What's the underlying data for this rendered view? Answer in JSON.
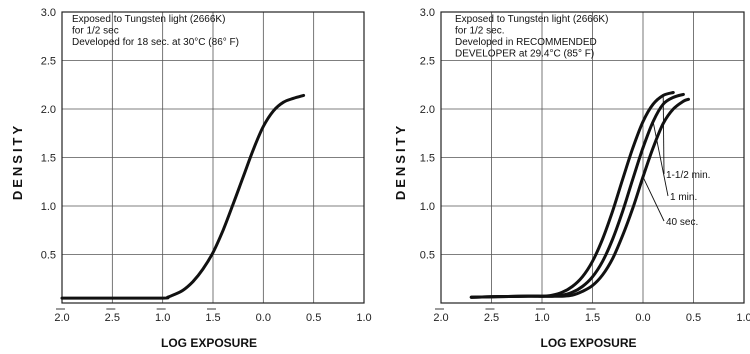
{
  "chart_data": [
    {
      "type": "line",
      "ylabel": "DENSITY",
      "xlabel": "LOG EXPOSURE",
      "x_ticks": [
        "2.0",
        "2.5",
        "1.0",
        "1.5",
        "0.0",
        "0.5",
        "1.0"
      ],
      "x_ticks_bar": [
        true,
        true,
        true,
        true,
        false,
        false,
        false
      ],
      "y_ticks": [
        "0.5",
        "1.0",
        "1.5",
        "2.0",
        "2.5",
        "3.0"
      ],
      "xlim": [
        -2.0,
        1.0
      ],
      "ylim": [
        0.0,
        3.0
      ],
      "grid": true,
      "annotation": [
        "Exposed to Tungsten light (2666K)",
        "for 1/2 sec",
        "Developed for 18 sec. at 30°C (86° F)"
      ],
      "series": [
        {
          "x": [
            -2.0,
            -1.5,
            -1.0,
            -0.95,
            -0.9,
            -0.8,
            -0.7,
            -0.6,
            -0.5,
            -0.4,
            -0.3,
            -0.2,
            -0.1,
            0.0,
            0.1,
            0.2,
            0.3,
            0.4
          ],
          "y": [
            0.05,
            0.05,
            0.05,
            0.06,
            0.08,
            0.13,
            0.22,
            0.35,
            0.52,
            0.75,
            1.02,
            1.3,
            1.58,
            1.82,
            1.98,
            2.07,
            2.11,
            2.14
          ]
        }
      ]
    },
    {
      "type": "line",
      "ylabel": "DENSITY",
      "xlabel": "LOG EXPOSURE",
      "x_ticks": [
        "2.0",
        "2.5",
        "1.0",
        "1.5",
        "0.0",
        "0.5",
        "1.0"
      ],
      "x_ticks_bar": [
        true,
        true,
        true,
        true,
        false,
        false,
        false
      ],
      "y_ticks": [
        "0.5",
        "1.0",
        "1.5",
        "2.0",
        "2.5",
        "3.0"
      ],
      "xlim": [
        -2.0,
        1.0
      ],
      "ylim": [
        0.0,
        3.0
      ],
      "grid": true,
      "annotation": [
        "Exposed to Tungsten light (2666K)",
        "for 1/2 sec.",
        "Developed in RECOMMENDED",
        "DEVELOPER at 29.4°C (85° F)"
      ],
      "series": [
        {
          "name": "1-1/2 min.",
          "x": [
            -1.7,
            -1.2,
            -1.0,
            -0.9,
            -0.8,
            -0.7,
            -0.6,
            -0.5,
            -0.4,
            -0.3,
            -0.2,
            -0.1,
            0.0,
            0.1,
            0.2,
            0.3
          ],
          "y": [
            0.06,
            0.07,
            0.07,
            0.08,
            0.11,
            0.17,
            0.27,
            0.43,
            0.66,
            0.95,
            1.28,
            1.6,
            1.87,
            2.05,
            2.14,
            2.17
          ]
        },
        {
          "name": "1 min.",
          "x": [
            -1.7,
            -1.2,
            -1.0,
            -0.9,
            -0.8,
            -0.7,
            -0.6,
            -0.5,
            -0.4,
            -0.3,
            -0.2,
            -0.1,
            0.0,
            0.1,
            0.2,
            0.3,
            0.4
          ],
          "y": [
            0.06,
            0.07,
            0.07,
            0.07,
            0.08,
            0.11,
            0.17,
            0.27,
            0.43,
            0.66,
            0.95,
            1.28,
            1.6,
            1.87,
            2.05,
            2.12,
            2.15
          ]
        },
        {
          "name": "40 sec.",
          "x": [
            -1.7,
            -1.2,
            -1.0,
            -0.9,
            -0.8,
            -0.7,
            -0.6,
            -0.5,
            -0.4,
            -0.3,
            -0.2,
            -0.1,
            0.0,
            0.1,
            0.2,
            0.3,
            0.4,
            0.45
          ],
          "y": [
            0.06,
            0.07,
            0.07,
            0.07,
            0.07,
            0.08,
            0.12,
            0.18,
            0.29,
            0.46,
            0.7,
            0.98,
            1.3,
            1.6,
            1.85,
            2.0,
            2.08,
            2.1
          ]
        }
      ]
    }
  ]
}
